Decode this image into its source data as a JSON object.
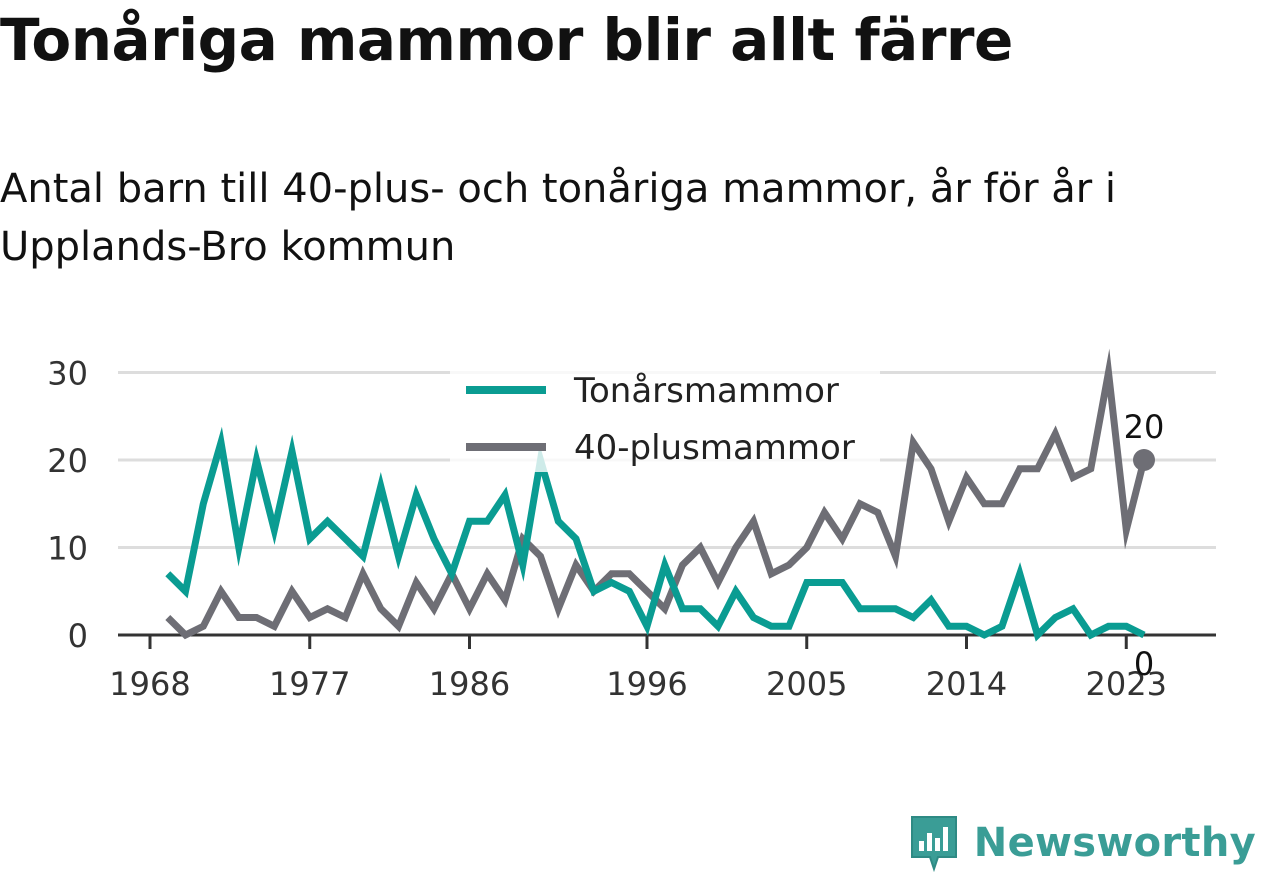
{
  "header": {
    "title": "Tonåriga mammor blir allt färre",
    "subtitle": "Antal barn till 40-plus- och tonåriga mammor, år för år i Upplands-Bro kommun"
  },
  "footer": {
    "brand": "Newsworthy"
  },
  "colors": {
    "teen": "#0a9c92",
    "forty": "#6e6e75",
    "grid": "#dddddd",
    "axis": "#333333",
    "brand": "#3a9d96"
  },
  "chart_data": {
    "type": "line",
    "x": [
      1969,
      1970,
      1971,
      1972,
      1973,
      1974,
      1975,
      1976,
      1977,
      1978,
      1979,
      1980,
      1981,
      1982,
      1983,
      1984,
      1985,
      1986,
      1987,
      1988,
      1989,
      1990,
      1991,
      1992,
      1993,
      1994,
      1995,
      1996,
      1997,
      1998,
      1999,
      2000,
      2001,
      2002,
      2003,
      2004,
      2005,
      2006,
      2007,
      2008,
      2009,
      2010,
      2011,
      2012,
      2013,
      2014,
      2015,
      2016,
      2017,
      2018,
      2019,
      2020,
      2021,
      2022,
      2023,
      2024
    ],
    "series": [
      {
        "name": "Tonårsmammor",
        "color": "#0a9c92",
        "values": [
          7,
          5,
          15,
          22,
          10,
          20,
          12,
          21,
          11,
          13,
          11,
          9,
          17,
          9,
          16,
          11,
          7,
          13,
          13,
          16,
          8,
          20,
          13,
          11,
          5,
          6,
          5,
          1,
          8,
          3,
          3,
          1,
          5,
          2,
          1,
          1,
          6,
          6,
          6,
          3,
          3,
          3,
          2,
          4,
          1,
          1,
          0,
          1,
          7,
          0,
          2,
          3,
          0,
          1,
          1,
          0
        ]
      },
      {
        "name": "40-plusmammor",
        "color": "#6e6e75",
        "values": [
          2,
          0,
          1,
          5,
          2,
          2,
          1,
          5,
          2,
          3,
          2,
          7,
          3,
          1,
          6,
          3,
          7,
          3,
          7,
          4,
          11,
          9,
          3,
          8,
          5,
          7,
          7,
          5,
          3,
          8,
          10,
          6,
          10,
          13,
          7,
          8,
          10,
          14,
          11,
          15,
          14,
          9,
          22,
          19,
          13,
          18,
          15,
          15,
          19,
          19,
          23,
          18,
          19,
          30,
          12,
          20
        ]
      }
    ],
    "x_ticks": [
      "1968",
      "1977",
      "1986",
      "1996",
      "2005",
      "2014",
      "2023"
    ],
    "y_ticks": [
      "0",
      "10",
      "20",
      "30"
    ],
    "ylim": [
      0,
      30
    ],
    "end_labels": {
      "teen": "0",
      "forty": "20"
    },
    "legend_position": "top-center",
    "grid": true
  }
}
